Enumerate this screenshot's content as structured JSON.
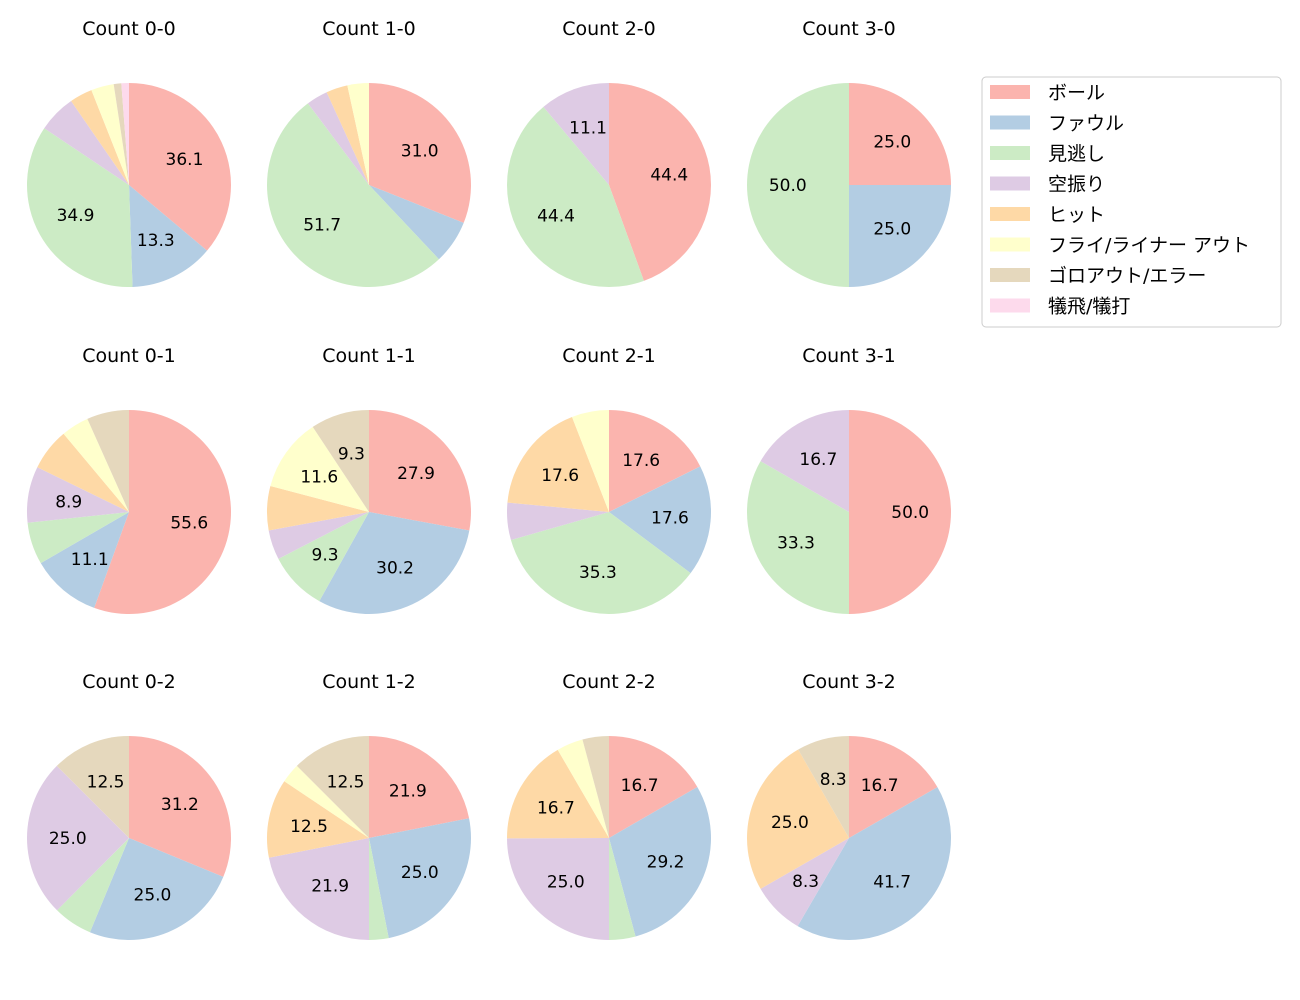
{
  "chart_data": {
    "type": "pie",
    "categories": [
      "ボール",
      "ファウル",
      "見逃し",
      "空振り",
      "ヒット",
      "フライ/ライナー アウト",
      "ゴロアウト/エラー",
      "犠飛/犠打"
    ],
    "colors": [
      "#fbb4ae",
      "#b3cde3",
      "#ccebc5",
      "#decbe4",
      "#fed9a6",
      "#ffffcc",
      "#e5d8bd",
      "#fddaec"
    ],
    "start_angle": 90,
    "direction": "clockwise",
    "legend_position": "right",
    "pies": [
      {
        "title": "Count 0-0",
        "values": [
          36.1,
          13.3,
          34.9,
          6.0,
          3.6,
          3.6,
          1.2,
          1.2
        ]
      },
      {
        "title": "Count 1-0",
        "values": [
          31.0,
          6.9,
          51.7,
          3.4,
          3.4,
          3.4,
          0,
          0
        ]
      },
      {
        "title": "Count 2-0",
        "values": [
          44.4,
          0,
          44.4,
          11.1,
          0,
          0,
          0,
          0
        ]
      },
      {
        "title": "Count 3-0",
        "values": [
          25.0,
          25.0,
          50.0,
          0,
          0,
          0,
          0,
          0
        ]
      },
      {
        "title": "Count 0-1",
        "values": [
          55.6,
          11.1,
          6.7,
          8.9,
          6.7,
          4.4,
          6.7,
          0
        ]
      },
      {
        "title": "Count 1-1",
        "values": [
          27.9,
          30.2,
          9.3,
          4.7,
          7.0,
          11.6,
          9.3,
          0
        ]
      },
      {
        "title": "Count 2-1",
        "values": [
          17.6,
          17.6,
          35.3,
          5.9,
          17.6,
          5.9,
          0,
          0
        ]
      },
      {
        "title": "Count 3-1",
        "values": [
          50.0,
          0,
          33.3,
          16.7,
          0,
          0,
          0,
          0
        ]
      },
      {
        "title": "Count 0-2",
        "values": [
          31.2,
          25.0,
          6.2,
          25.0,
          0,
          0,
          12.5,
          0
        ]
      },
      {
        "title": "Count 1-2",
        "values": [
          21.9,
          25.0,
          3.1,
          21.9,
          12.5,
          3.1,
          12.5,
          0
        ]
      },
      {
        "title": "Count 2-2",
        "values": [
          16.7,
          29.2,
          4.2,
          25.0,
          16.7,
          4.2,
          4.2,
          0
        ]
      },
      {
        "title": "Count 3-2",
        "values": [
          16.7,
          41.7,
          0,
          8.3,
          25.0,
          0,
          8.3,
          0
        ]
      }
    ]
  }
}
